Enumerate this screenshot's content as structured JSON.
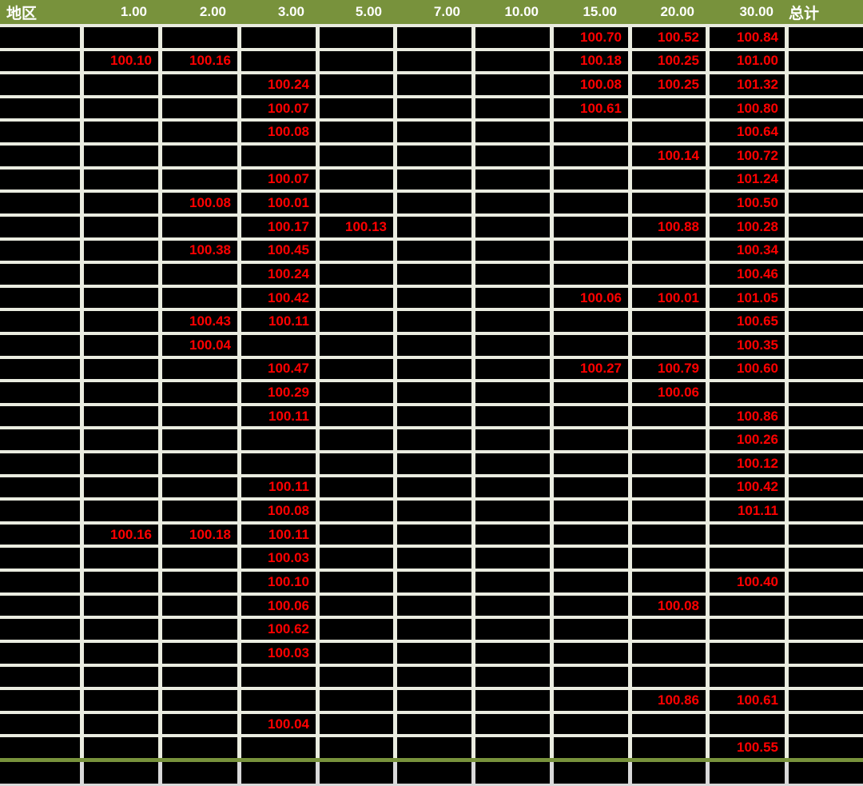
{
  "table": {
    "columns": [
      "地区",
      "1.00",
      "2.00",
      "3.00",
      "5.00",
      "7.00",
      "10.00",
      "15.00",
      "20.00",
      "30.00",
      "总计"
    ],
    "rows": [
      [
        "",
        "",
        "",
        "",
        "",
        "",
        "",
        "100.70",
        "100.52",
        "100.84",
        ""
      ],
      [
        "",
        "100.10",
        "100.16",
        "",
        "",
        "",
        "",
        "100.18",
        "100.25",
        "101.00",
        ""
      ],
      [
        "",
        "",
        "",
        "100.24",
        "",
        "",
        "",
        "100.08",
        "100.25",
        "101.32",
        ""
      ],
      [
        "",
        "",
        "",
        "100.07",
        "",
        "",
        "",
        "100.61",
        "",
        "100.80",
        ""
      ],
      [
        "",
        "",
        "",
        "100.08",
        "",
        "",
        "",
        "",
        "",
        "100.64",
        ""
      ],
      [
        "",
        "",
        "",
        "",
        "",
        "",
        "",
        "",
        "100.14",
        "100.72",
        ""
      ],
      [
        "",
        "",
        "",
        "100.07",
        "",
        "",
        "",
        "",
        "",
        "101.24",
        ""
      ],
      [
        "",
        "",
        "100.08",
        "100.01",
        "",
        "",
        "",
        "",
        "",
        "100.50",
        ""
      ],
      [
        "",
        "",
        "",
        "100.17",
        "100.13",
        "",
        "",
        "",
        "100.88",
        "100.28",
        ""
      ],
      [
        "",
        "",
        "100.38",
        "100.45",
        "",
        "",
        "",
        "",
        "",
        "100.34",
        ""
      ],
      [
        "",
        "",
        "",
        "100.24",
        "",
        "",
        "",
        "",
        "",
        "100.46",
        ""
      ],
      [
        "",
        "",
        "",
        "100.42",
        "",
        "",
        "",
        "100.06",
        "100.01",
        "101.05",
        ""
      ],
      [
        "",
        "",
        "100.43",
        "100.11",
        "",
        "",
        "",
        "",
        "",
        "100.65",
        ""
      ],
      [
        "",
        "",
        "100.04",
        "",
        "",
        "",
        "",
        "",
        "",
        "100.35",
        ""
      ],
      [
        "",
        "",
        "",
        "100.47",
        "",
        "",
        "",
        "100.27",
        "100.79",
        "100.60",
        ""
      ],
      [
        "",
        "",
        "",
        "100.29",
        "",
        "",
        "",
        "",
        "100.06",
        "",
        ""
      ],
      [
        "",
        "",
        "",
        "100.11",
        "",
        "",
        "",
        "",
        "",
        "100.86",
        ""
      ],
      [
        "",
        "",
        "",
        "",
        "",
        "",
        "",
        "",
        "",
        "100.26",
        ""
      ],
      [
        "",
        "",
        "",
        "",
        "",
        "",
        "",
        "",
        "",
        "100.12",
        ""
      ],
      [
        "",
        "",
        "",
        "100.11",
        "",
        "",
        "",
        "",
        "",
        "100.42",
        ""
      ],
      [
        "",
        "",
        "",
        "100.08",
        "",
        "",
        "",
        "",
        "",
        "101.11",
        ""
      ],
      [
        "",
        "100.16",
        "100.18",
        "100.11",
        "",
        "",
        "",
        "",
        "",
        "",
        ""
      ],
      [
        "",
        "",
        "",
        "100.03",
        "",
        "",
        "",
        "",
        "",
        "",
        ""
      ],
      [
        "",
        "",
        "",
        "100.10",
        "",
        "",
        "",
        "",
        "",
        "100.40",
        ""
      ],
      [
        "",
        "",
        "",
        "100.06",
        "",
        "",
        "",
        "",
        "100.08",
        "",
        ""
      ],
      [
        "",
        "",
        "",
        "100.62",
        "",
        "",
        "",
        "",
        "",
        "",
        ""
      ],
      [
        "",
        "",
        "",
        "100.03",
        "",
        "",
        "",
        "",
        "",
        "",
        ""
      ],
      [
        "",
        "",
        "",
        "",
        "",
        "",
        "",
        "",
        "",
        "",
        ""
      ],
      [
        "",
        "",
        "",
        "",
        "",
        "",
        "",
        "",
        "100.86",
        "100.61",
        ""
      ],
      [
        "",
        "",
        "",
        "100.04",
        "",
        "",
        "",
        "",
        "",
        "",
        ""
      ],
      [
        "",
        "",
        "",
        "",
        "",
        "",
        "",
        "",
        "",
        "100.55",
        ""
      ]
    ],
    "footer_row": [
      "",
      "",
      "",
      "",
      "",
      "",
      "",
      "",
      "",
      "",
      ""
    ]
  },
  "colors": {
    "header_bg": "#78923C",
    "header_text": "#FFFFFF",
    "cell_bg": "#000000",
    "gridline": "#EAECE0",
    "footer_gridline": "#D9D9D9",
    "value_text": "#FF0000",
    "separator_line": "#78923C"
  }
}
